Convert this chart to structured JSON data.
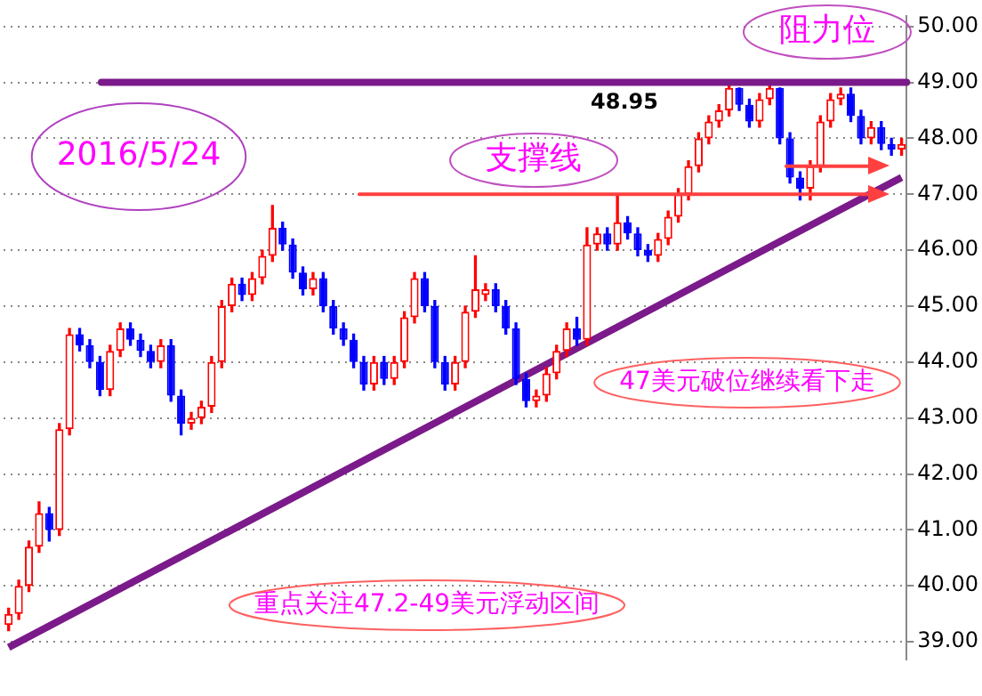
{
  "chart_data": {
    "type": "candlestick",
    "categories": [
      null,
      null,
      null,
      null,
      null,
      null,
      null,
      null,
      null,
      null,
      null,
      null,
      null,
      null,
      null,
      null,
      null,
      null,
      null,
      null,
      null,
      null,
      null,
      null,
      null,
      null,
      null,
      null,
      null,
      null,
      null,
      null,
      null,
      null,
      null,
      null,
      null,
      null,
      null,
      null,
      null,
      null,
      null,
      null,
      null,
      null,
      null,
      null,
      null,
      null,
      null,
      null,
      null,
      null,
      null,
      null,
      null,
      null,
      null,
      null,
      null,
      null,
      null,
      null,
      null,
      null,
      null,
      null,
      null,
      null,
      null,
      null,
      null,
      null,
      null,
      null,
      null,
      null,
      null,
      null,
      null,
      null,
      null,
      null,
      null,
      null,
      null,
      null,
      null
    ],
    "ohlc": [
      [
        39.3,
        39.6,
        39.2,
        39.5
      ],
      [
        39.5,
        40.1,
        39.4,
        40.0
      ],
      [
        40.0,
        40.8,
        39.9,
        40.7
      ],
      [
        40.7,
        41.5,
        40.6,
        41.3
      ],
      [
        41.3,
        41.4,
        40.8,
        41.0
      ],
      [
        41.0,
        42.9,
        40.9,
        42.8
      ],
      [
        42.8,
        44.6,
        42.7,
        44.5
      ],
      [
        44.5,
        44.6,
        44.2,
        44.3
      ],
      [
        44.3,
        44.4,
        43.9,
        44.0
      ],
      [
        44.0,
        44.1,
        43.4,
        43.5
      ],
      [
        43.5,
        44.3,
        43.4,
        44.2
      ],
      [
        44.2,
        44.7,
        44.1,
        44.6
      ],
      [
        44.6,
        44.7,
        44.3,
        44.4
      ],
      [
        44.4,
        44.5,
        44.1,
        44.2
      ],
      [
        44.2,
        44.3,
        43.9,
        44.0
      ],
      [
        44.0,
        44.4,
        43.9,
        44.3
      ],
      [
        44.3,
        44.4,
        43.3,
        43.4
      ],
      [
        43.4,
        43.5,
        42.7,
        42.9
      ],
      [
        42.9,
        43.1,
        42.8,
        43.0
      ],
      [
        43.0,
        43.3,
        42.9,
        43.2
      ],
      [
        43.2,
        44.1,
        43.1,
        44.0
      ],
      [
        44.0,
        45.1,
        43.9,
        45.0
      ],
      [
        45.0,
        45.5,
        44.9,
        45.4
      ],
      [
        45.4,
        45.5,
        45.1,
        45.2
      ],
      [
        45.2,
        45.6,
        45.1,
        45.5
      ],
      [
        45.5,
        46.0,
        45.4,
        45.9
      ],
      [
        45.9,
        46.8,
        45.8,
        46.4
      ],
      [
        46.4,
        46.5,
        46.0,
        46.1
      ],
      [
        46.1,
        46.2,
        45.5,
        45.6
      ],
      [
        45.6,
        45.7,
        45.2,
        45.3
      ],
      [
        45.3,
        45.6,
        45.2,
        45.5
      ],
      [
        45.5,
        45.6,
        44.9,
        45.0
      ],
      [
        45.0,
        45.1,
        44.5,
        44.6
      ],
      [
        44.6,
        44.7,
        44.3,
        44.4
      ],
      [
        44.4,
        44.5,
        43.9,
        44.0
      ],
      [
        44.0,
        44.1,
        43.5,
        43.6
      ],
      [
        43.6,
        44.1,
        43.5,
        44.0
      ],
      [
        44.0,
        44.1,
        43.6,
        43.7
      ],
      [
        43.7,
        44.1,
        43.6,
        44.0
      ],
      [
        44.0,
        44.9,
        43.9,
        44.8
      ],
      [
        44.8,
        45.6,
        44.7,
        45.5
      ],
      [
        45.5,
        45.6,
        44.9,
        45.0
      ],
      [
        45.0,
        45.1,
        43.9,
        44.0
      ],
      [
        44.0,
        44.1,
        43.5,
        43.6
      ],
      [
        43.6,
        44.1,
        43.5,
        44.0
      ],
      [
        44.0,
        45.0,
        43.9,
        44.9
      ],
      [
        44.9,
        45.9,
        44.8,
        45.3
      ],
      [
        45.2,
        45.4,
        45.1,
        45.3
      ],
      [
        45.3,
        45.4,
        44.9,
        45.0
      ],
      [
        45.0,
        45.1,
        44.5,
        44.6
      ],
      [
        44.6,
        44.7,
        43.6,
        43.7
      ],
      [
        43.7,
        43.8,
        43.2,
        43.3
      ],
      [
        43.3,
        43.5,
        43.2,
        43.4
      ],
      [
        43.4,
        43.9,
        43.3,
        43.8
      ],
      [
        43.8,
        44.3,
        43.7,
        44.2
      ],
      [
        44.2,
        44.7,
        44.1,
        44.6
      ],
      [
        44.6,
        44.8,
        44.3,
        44.4
      ],
      [
        44.4,
        46.4,
        44.3,
        46.1
      ],
      [
        46.1,
        46.4,
        46.0,
        46.3
      ],
      [
        46.3,
        46.4,
        46.0,
        46.1
      ],
      [
        46.1,
        47.0,
        46.0,
        46.5
      ],
      [
        46.5,
        46.6,
        46.2,
        46.3
      ],
      [
        46.3,
        46.4,
        45.9,
        46.0
      ],
      [
        46.0,
        46.1,
        45.8,
        45.9
      ],
      [
        45.9,
        46.3,
        45.8,
        46.2
      ],
      [
        46.2,
        46.7,
        46.1,
        46.6
      ],
      [
        46.6,
        47.1,
        46.5,
        47.0
      ],
      [
        47.0,
        47.6,
        46.9,
        47.5
      ],
      [
        47.5,
        48.1,
        47.4,
        48.0
      ],
      [
        48.0,
        48.4,
        47.9,
        48.3
      ],
      [
        48.3,
        48.6,
        48.2,
        48.5
      ],
      [
        48.5,
        48.95,
        48.4,
        48.9
      ],
      [
        48.9,
        48.9,
        48.5,
        48.6
      ],
      [
        48.6,
        48.7,
        48.2,
        48.3
      ],
      [
        48.3,
        48.8,
        48.2,
        48.7
      ],
      [
        48.7,
        48.95,
        48.6,
        48.9
      ],
      [
        48.9,
        48.9,
        47.9,
        48.0
      ],
      [
        48.0,
        48.1,
        47.2,
        47.3
      ],
      [
        47.3,
        47.4,
        46.9,
        47.1
      ],
      [
        47.1,
        47.6,
        46.9,
        47.5
      ],
      [
        47.5,
        48.4,
        47.4,
        48.3
      ],
      [
        48.3,
        48.8,
        48.2,
        48.7
      ],
      [
        48.7,
        48.9,
        48.6,
        48.8
      ],
      [
        48.8,
        48.9,
        48.3,
        48.4
      ],
      [
        48.4,
        48.5,
        47.9,
        48.0
      ],
      [
        48.0,
        48.3,
        47.9,
        48.2
      ],
      [
        48.2,
        48.3,
        47.8,
        47.9
      ],
      [
        47.9,
        48.0,
        47.7,
        47.8
      ],
      [
        47.8,
        48.0,
        47.7,
        47.9
      ]
    ],
    "colors": [
      "#ff0000",
      "#ff0000",
      "#ff0000",
      "#ff0000",
      "#0000ff",
      "#ff0000",
      "#ff0000",
      "#0000ff",
      "#0000ff",
      "#0000ff",
      "#ff0000",
      "#ff0000",
      "#0000ff",
      "#0000ff",
      "#0000ff",
      "#ff0000",
      "#0000ff",
      "#0000ff",
      "#ff0000",
      "#ff0000",
      "#ff0000",
      "#ff0000",
      "#ff0000",
      "#0000ff",
      "#ff0000",
      "#ff0000",
      "#ff0000",
      "#0000ff",
      "#0000ff",
      "#0000ff",
      "#ff0000",
      "#0000ff",
      "#0000ff",
      "#0000ff",
      "#0000ff",
      "#0000ff",
      "#ff0000",
      "#0000ff",
      "#ff0000",
      "#ff0000",
      "#ff0000",
      "#0000ff",
      "#0000ff",
      "#0000ff",
      "#ff0000",
      "#ff0000",
      "#ff0000",
      "#ff0000",
      "#0000ff",
      "#0000ff",
      "#0000ff",
      "#0000ff",
      "#ff0000",
      "#ff0000",
      "#ff0000",
      "#ff0000",
      "#0000ff",
      "#ff0000",
      "#ff0000",
      "#0000ff",
      "#ff0000",
      "#0000ff",
      "#0000ff",
      "#0000ff",
      "#ff0000",
      "#ff0000",
      "#ff0000",
      "#ff0000",
      "#ff0000",
      "#ff0000",
      "#ff0000",
      "#ff0000",
      "#0000ff",
      "#0000ff",
      "#ff0000",
      "#ff0000",
      "#0000ff",
      "#0000ff",
      "#0000ff",
      "#ff0000",
      "#ff0000",
      "#ff0000",
      "#ff0000",
      "#0000ff",
      "#0000ff",
      "#ff0000",
      "#0000ff",
      "#0000ff",
      "#ff0000"
    ],
    "series": [
      {
        "type": "line",
        "color": "#7b1a8a",
        "values": [
          38.9,
          null,
          null,
          null,
          null,
          null,
          null,
          null,
          null,
          null,
          null,
          null,
          null,
          null,
          null,
          null,
          null,
          null,
          null,
          null,
          null,
          null,
          null,
          null,
          null,
          null,
          null,
          null,
          null,
          null,
          null,
          null,
          null,
          null,
          null,
          null,
          null,
          null,
          null,
          null,
          null,
          null,
          null,
          null,
          null,
          null,
          null,
          null,
          null,
          null,
          null,
          null,
          null,
          null,
          null,
          null,
          null,
          null,
          null,
          null,
          null,
          null,
          null,
          null,
          null,
          null,
          null,
          null,
          null,
          null,
          null,
          null,
          null,
          null,
          null,
          null,
          null,
          null,
          null,
          null,
          null,
          null,
          null,
          null,
          null,
          null,
          null,
          null,
          47.3
        ]
      }
    ],
    "ylim": [
      38.68,
      50.18
    ],
    "yticks": [
      {
        "value": 39,
        "label": "39.00"
      },
      {
        "value": 40,
        "label": "40.00"
      },
      {
        "value": 41,
        "label": "41.00"
      },
      {
        "value": 42,
        "label": "42.00"
      },
      {
        "value": 43,
        "label": "43.00"
      },
      {
        "value": 44,
        "label": "44.00"
      },
      {
        "value": 45,
        "label": "45.00"
      },
      {
        "value": 46,
        "label": "46.00"
      },
      {
        "value": 47,
        "label": "47.00"
      },
      {
        "value": 48,
        "label": "48.00"
      },
      {
        "value": 49,
        "label": "49.00"
      },
      {
        "value": 50,
        "label": "50.00"
      }
    ],
    "grid": "y",
    "ref_lines": [
      {
        "axis": "y",
        "value": 49,
        "label": "阻力位",
        "color": "#7b1a8a"
      },
      {
        "axis": "y",
        "value": 47,
        "label": "支撑线",
        "color": "#ff4040"
      },
      {
        "axis": "y",
        "value": 47.5,
        "label": null,
        "color": "#ff4040"
      }
    ],
    "annotations": [
      {
        "text": "48.95",
        "y": 48.95
      },
      "2016/5/24",
      "47美元破位继续看下走",
      "重点关注47.2-49美元浮动区间"
    ]
  }
}
